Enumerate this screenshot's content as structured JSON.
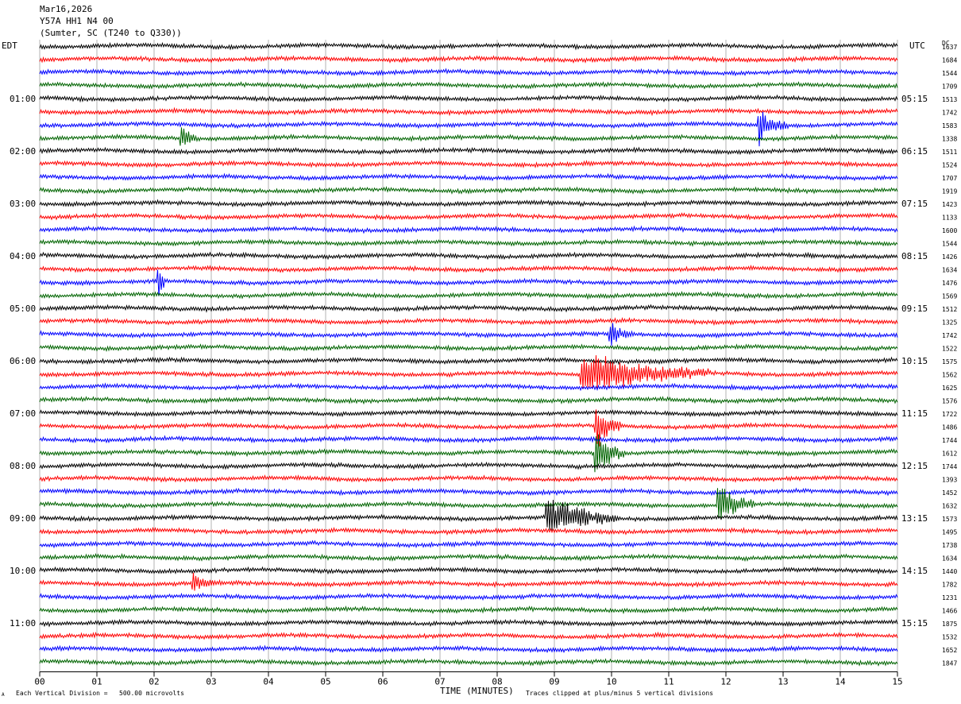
{
  "header": {
    "date": "Mar16,2026",
    "station": "Y57A HH1 N4 00",
    "location": "(Sumter, SC (T240 to Q330))"
  },
  "corner_labels": {
    "left": "EDT",
    "right": "UTC",
    "dc": "DC"
  },
  "footer": {
    "scale_note": "Each Vertical Division =   500.00 microvolts",
    "clip_note": "Traces clipped at plus/minus 5 vertical divisions",
    "small_mark": "A"
  },
  "colors": {
    "cycle": [
      "#000000",
      "#ff0000",
      "#0000ff",
      "#006400"
    ],
    "grid": "#a0a0a0"
  },
  "chart_data": {
    "type": "line",
    "chart_kind": "helicorder seismogram",
    "xlabel": "TIME (MINUTES)",
    "xlim": [
      0,
      15
    ],
    "x_tick_labels": [
      "00",
      "01",
      "02",
      "03",
      "04",
      "05",
      "06",
      "07",
      "08",
      "09",
      "10",
      "11",
      "12",
      "13",
      "14",
      "15"
    ],
    "traces_per_hour": 4,
    "left_hour_labels": [
      "01:00",
      "02:00",
      "03:00",
      "04:00",
      "05:00",
      "06:00",
      "07:00",
      "08:00",
      "09:00",
      "10:00",
      "11:00"
    ],
    "right_hour_labels": [
      "05:15",
      "06:15",
      "07:15",
      "08:15",
      "09:15",
      "10:15",
      "11:15",
      "12:15",
      "13:15",
      "14:15",
      "15:15"
    ],
    "dc_offsets": [
      "1637",
      "1684",
      "1544",
      "1709",
      "1513",
      "1742",
      "1583",
      "1338",
      "1511",
      "1524",
      "1707",
      "1919",
      "1423",
      "1133",
      "1600",
      "1544",
      "1426",
      "1634",
      "1476",
      "1569",
      "1512",
      "1325",
      "1742",
      "1522",
      "1575",
      "1562",
      "1625",
      "1576",
      "1722",
      "1486",
      "1744",
      "1612",
      "1744",
      "1393",
      "1452",
      "1632",
      "1573",
      "1495",
      "1738",
      "1634",
      "1440",
      "1782",
      "1231",
      "1466",
      "1875",
      "1532",
      "1652",
      "1847"
    ],
    "events": [
      {
        "trace": 6,
        "minute": 12.6,
        "amplitude": 4,
        "duration_min": 0.5
      },
      {
        "trace": 7,
        "minute": 2.5,
        "amplitude": 2,
        "duration_min": 0.3
      },
      {
        "trace": 18,
        "minute": 2.1,
        "amplitude": 4,
        "duration_min": 0.1
      },
      {
        "trace": 22,
        "minute": 10.0,
        "amplitude": 2,
        "duration_min": 0.4
      },
      {
        "trace": 25,
        "minute": 9.5,
        "amplitude": 5,
        "duration_min": 2.2
      },
      {
        "trace": 29,
        "minute": 9.75,
        "amplitude": 5,
        "duration_min": 0.4
      },
      {
        "trace": 31,
        "minute": 9.75,
        "amplitude": 5,
        "duration_min": 0.5
      },
      {
        "trace": 35,
        "minute": 11.9,
        "amplitude": 5,
        "duration_min": 0.6
      },
      {
        "trace": 36,
        "minute": 8.9,
        "amplitude": 5,
        "duration_min": 1.2
      },
      {
        "trace": 41,
        "minute": 2.7,
        "amplitude": 2,
        "duration_min": 0.4
      }
    ]
  }
}
